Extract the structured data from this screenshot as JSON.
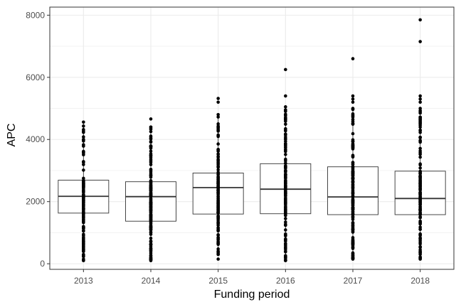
{
  "chart_data": {
    "type": "boxplot",
    "title": "",
    "xlabel": "Funding period",
    "ylabel": "APC",
    "categories": [
      "2013",
      "2014",
      "2015",
      "2016",
      "2017",
      "2018"
    ],
    "ylim": [
      -180,
      8260
    ],
    "yticks": [
      0,
      2000,
      4000,
      6000,
      8000
    ],
    "grid": true,
    "boxes": [
      {
        "category": "2013",
        "min": 100,
        "q1": 1630,
        "median": 2170,
        "q3": 2690,
        "max": 4560,
        "outliers": []
      },
      {
        "category": "2014",
        "min": 100,
        "q1": 1370,
        "median": 2160,
        "q3": 2640,
        "max": 4400,
        "outliers": [
          4660
        ]
      },
      {
        "category": "2015",
        "min": 300,
        "q1": 1600,
        "median": 2450,
        "q3": 2920,
        "max": 4800,
        "outliers": [
          150,
          5200,
          5320
        ]
      },
      {
        "category": "2016",
        "min": 100,
        "q1": 1610,
        "median": 2400,
        "q3": 3220,
        "max": 5050,
        "outliers": [
          5400,
          6250
        ]
      },
      {
        "category": "2017",
        "min": 150,
        "q1": 1580,
        "median": 2150,
        "q3": 3120,
        "max": 5000,
        "outliers": [
          5200,
          5300,
          5400,
          6600
        ]
      },
      {
        "category": "2018",
        "min": 150,
        "q1": 1580,
        "median": 2100,
        "q3": 2980,
        "max": 5000,
        "outliers": [
          5200,
          5300,
          5400,
          7150,
          7850
        ]
      }
    ],
    "colors": {
      "box_stroke": "#333333",
      "box_fill": "#ffffff",
      "points": "#000000",
      "grid": "#ebebeb",
      "panel_border": "#333333"
    }
  }
}
